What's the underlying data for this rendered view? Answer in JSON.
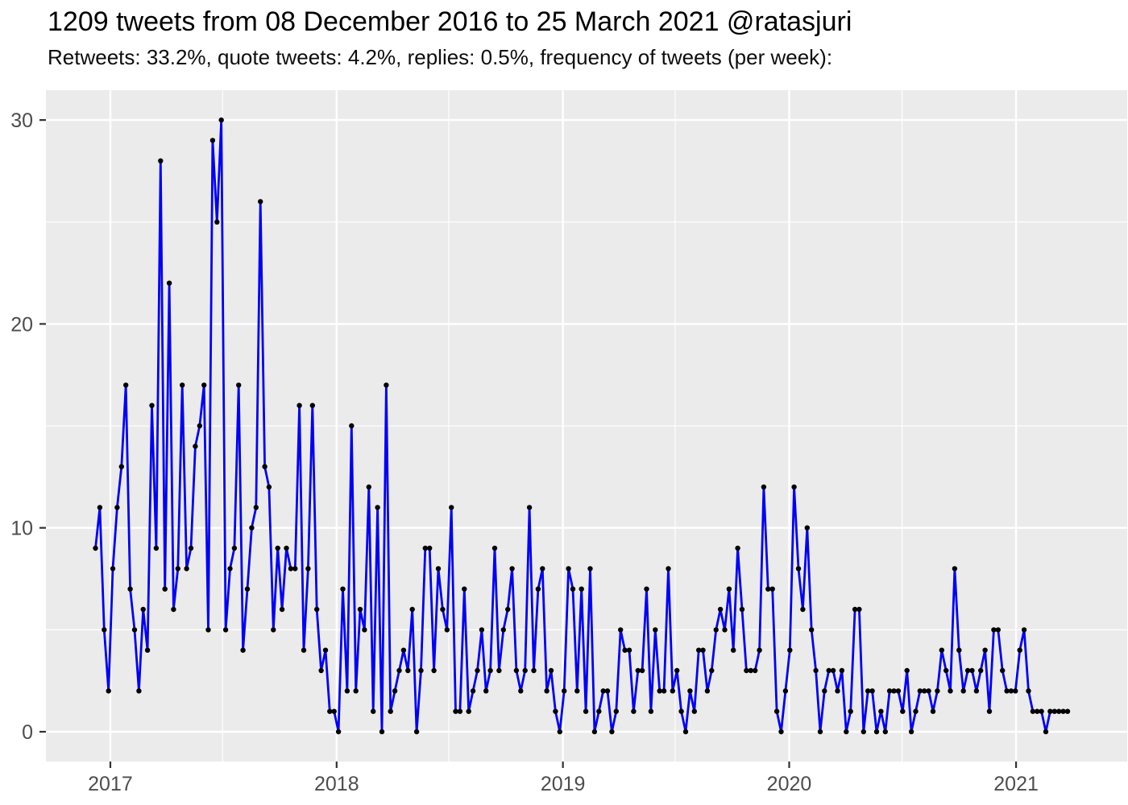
{
  "header": {
    "title": "1209 tweets from 08 December 2016 to 25 March 2021 @ratasjuri",
    "subtitle": "Retweets: 33.2%, quote tweets: 4.2%, replies: 0.5%, frequency of tweets (per week):"
  },
  "chart_data": {
    "type": "line",
    "title": "1209 tweets from 08 December 2016 to 25 March 2021 @ratasjuri",
    "subtitle": "Retweets: 33.2%, quote tweets: 4.2%, replies: 0.5%, frequency of tweets (per week):",
    "series_name": "tweets-per-week",
    "start_date": "2016-12-08",
    "interval_days": 7,
    "values": [
      9,
      11,
      5,
      2,
      8,
      11,
      13,
      17,
      7,
      5,
      2,
      6,
      4,
      16,
      9,
      28,
      7,
      22,
      6,
      8,
      17,
      8,
      9,
      14,
      15,
      17,
      5,
      29,
      25,
      30,
      5,
      8,
      9,
      17,
      4,
      7,
      10,
      11,
      26,
      13,
      12,
      5,
      9,
      6,
      9,
      8,
      8,
      16,
      4,
      8,
      16,
      6,
      3,
      4,
      1,
      1,
      0,
      7,
      2,
      15,
      2,
      6,
      5,
      12,
      1,
      11,
      0,
      17,
      1,
      2,
      3,
      4,
      3,
      6,
      0,
      3,
      9,
      9,
      3,
      8,
      6,
      5,
      11,
      1,
      1,
      7,
      1,
      2,
      3,
      5,
      2,
      3,
      9,
      3,
      5,
      6,
      8,
      3,
      2,
      3,
      11,
      3,
      7,
      8,
      2,
      3,
      1,
      0,
      2,
      8,
      7,
      2,
      7,
      1,
      8,
      0,
      1,
      2,
      2,
      0,
      1,
      5,
      4,
      4,
      1,
      3,
      3,
      7,
      1,
      5,
      2,
      2,
      8,
      2,
      3,
      1,
      0,
      2,
      1,
      4,
      4,
      2,
      3,
      5,
      6,
      5,
      7,
      4,
      9,
      6,
      3,
      3,
      3,
      4,
      12,
      7,
      7,
      1,
      0,
      2,
      4,
      12,
      8,
      6,
      10,
      5,
      3,
      0,
      2,
      3,
      3,
      2,
      3,
      0,
      1,
      6,
      6,
      0,
      2,
      2,
      0,
      1,
      0,
      2,
      2,
      2,
      1,
      3,
      0,
      1,
      2,
      2,
      2,
      1,
      2,
      4,
      3,
      2,
      8,
      4,
      2,
      3,
      3,
      2,
      3,
      4,
      1,
      5,
      5,
      3,
      2,
      2,
      2,
      4,
      5,
      2,
      1,
      1,
      1,
      0,
      1,
      1,
      1,
      1,
      1
    ],
    "x_ticks": [
      {
        "label": "2017",
        "date": "2017-01-01"
      },
      {
        "label": "2018",
        "date": "2018-01-01"
      },
      {
        "label": "2019",
        "date": "2019-01-01"
      },
      {
        "label": "2020",
        "date": "2020-01-01"
      },
      {
        "label": "2021",
        "date": "2021-01-01"
      }
    ],
    "minor_x_dates": [
      "2017-07-01",
      "2018-07-01",
      "2019-07-01",
      "2020-07-01"
    ],
    "y_ticks": [
      0,
      10,
      20,
      30
    ],
    "minor_y_values": [
      5,
      15,
      25
    ],
    "ylim": [
      -1.5,
      31.5
    ],
    "grid": "on",
    "legend": "none",
    "colors": {
      "line": "#0000FA",
      "point": "#000000",
      "panel_background": "#EBEBEB",
      "grid_major": "#FFFFFF",
      "grid_minor": "#FFFFFF",
      "axis_text": "#4D4D4D",
      "tick_mark": "#333333",
      "title_text": "#000000"
    }
  }
}
